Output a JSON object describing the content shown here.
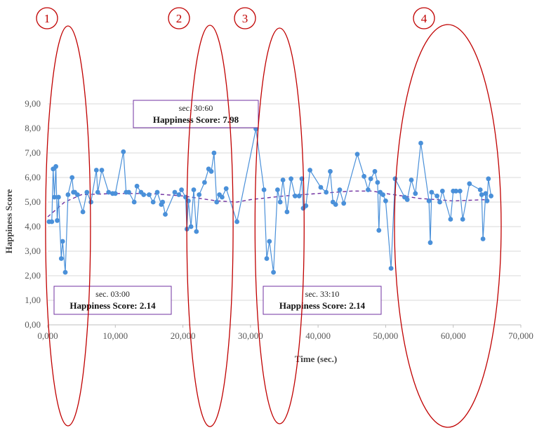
{
  "chart_data": {
    "type": "scatter",
    "xlabel": "Time (sec.)",
    "ylabel": "Happiness Score",
    "xlim": [
      0,
      70000
    ],
    "ylim": [
      0,
      9
    ],
    "x_ticks": [
      "0,000",
      "10,000",
      "20,000",
      "30,000",
      "40,000",
      "50,000",
      "60,000",
      "70,000"
    ],
    "y_ticks": [
      "0,00",
      "1,00",
      "2,00",
      "3,00",
      "4,00",
      "5,00",
      "6,00",
      "7,00",
      "8,00",
      "9,00"
    ],
    "grid": "horizontal",
    "colors": {
      "series": "#4a90d9",
      "trend": "#7030a0",
      "ellipse": "#c00000",
      "annotation_border": "#7030a0"
    },
    "series": [
      {
        "x": [
          200,
          600,
          800,
          1000,
          1200,
          1400,
          1600,
          2000,
          2200,
          2600,
          3000,
          3600,
          3800,
          4000,
          4400,
          5200,
          5800,
          6400,
          7200,
          7400,
          8000,
          9000,
          9600,
          10000,
          11200,
          11600,
          12000,
          12800,
          13200,
          13800,
          14200,
          15000,
          15600,
          16200,
          16800,
          17000,
          17400,
          18800,
          19400,
          19800,
          20400,
          20600,
          20800,
          21200,
          21600,
          22000,
          22400,
          23200,
          23800,
          24200,
          24600,
          25000,
          25400,
          25800,
          26400,
          28000,
          30800,
          32000,
          32400,
          32800,
          33400,
          34000,
          34400,
          34800,
          35400,
          36000,
          36600,
          37200,
          37600,
          37800,
          38200,
          38800,
          40400,
          41200,
          41800,
          42200,
          42600,
          43200,
          43800,
          45800,
          46800,
          47400,
          47800,
          48400,
          48800,
          49000,
          49200,
          49600,
          50000,
          50800,
          51400,
          52800,
          53200,
          53800,
          54400,
          55200,
          56400,
          56600,
          56800,
          57600,
          58000,
          58400,
          59600,
          60000,
          60400,
          61000,
          61400,
          62400,
          64000,
          64200,
          64400,
          64800,
          65000,
          65200,
          65600
        ],
        "y": [
          4.2,
          4.2,
          6.35,
          5.2,
          6.45,
          4.25,
          5.2,
          2.7,
          3.4,
          2.14,
          5.3,
          6.0,
          5.4,
          5.4,
          5.3,
          4.6,
          5.4,
          5.0,
          6.3,
          5.4,
          6.3,
          5.4,
          5.35,
          5.35,
          7.05,
          5.4,
          5.4,
          5.0,
          5.65,
          5.4,
          5.3,
          5.3,
          5.0,
          5.4,
          4.9,
          5.0,
          4.5,
          5.4,
          5.3,
          5.5,
          5.2,
          3.9,
          5.05,
          4.0,
          5.5,
          3.8,
          5.3,
          5.8,
          6.35,
          6.25,
          7.0,
          5.0,
          5.3,
          5.2,
          5.55,
          4.2,
          7.98,
          5.5,
          2.7,
          3.4,
          2.14,
          5.5,
          5.0,
          5.9,
          4.6,
          5.95,
          5.25,
          5.25,
          5.95,
          4.75,
          4.85,
          6.3,
          5.6,
          5.4,
          6.25,
          5.0,
          4.9,
          5.5,
          4.95,
          6.95,
          6.05,
          5.5,
          5.95,
          6.25,
          5.8,
          3.85,
          5.4,
          5.3,
          5.05,
          2.3,
          5.95,
          5.2,
          5.1,
          5.9,
          5.35,
          7.4,
          5.05,
          3.35,
          5.4,
          5.25,
          5.0,
          5.45,
          4.3,
          5.45,
          5.45,
          5.45,
          4.3,
          5.75,
          5.5,
          5.3,
          3.5,
          5.35,
          5.05,
          5.95,
          5.25
        ]
      }
    ],
    "trend": {
      "style": "dashed",
      "x": [
        0,
        2500,
        5000,
        10000,
        15000,
        20000,
        25000,
        28000,
        30000,
        35000,
        40000,
        45000,
        48000,
        50000,
        55000,
        60000,
        65000
      ],
      "y": [
        4.4,
        5.0,
        5.3,
        5.35,
        5.35,
        5.25,
        5.05,
        5.0,
        5.1,
        5.25,
        5.35,
        5.45,
        5.45,
        5.35,
        5.15,
        5.05,
        5.1
      ]
    },
    "annotations": [
      {
        "line1": "sec. 30:60",
        "line2": "Happiness Score: 7.98"
      },
      {
        "line1": "sec. 03:00",
        "line2": "Happiness Score: 2.14"
      },
      {
        "line1": "sec. 33:10",
        "line2": "Happiness Score: 2.14"
      }
    ],
    "regions": [
      {
        "label": "1",
        "x": 3000
      },
      {
        "label": "2",
        "x": 24000
      },
      {
        "label": "3",
        "x": 34300
      },
      {
        "label": "4",
        "x": 59200
      }
    ]
  }
}
